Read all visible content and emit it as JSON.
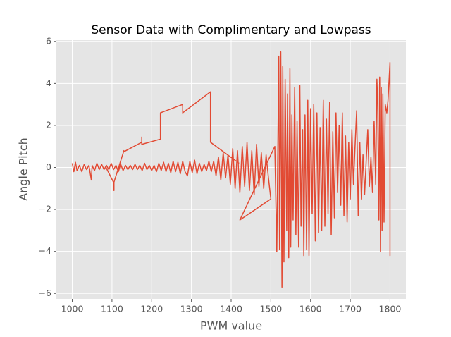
{
  "chart_data": {
    "type": "line",
    "title": "Sensor Data with Complimentary and Lowpass",
    "xlabel": "PWM value",
    "ylabel": "Angle Pitch",
    "color": "#E24A33",
    "grid": true,
    "xlim": [
      960,
      1840
    ],
    "ylim": [
      -6.26,
      6.06
    ],
    "xticks": [
      1000,
      1100,
      1200,
      1300,
      1400,
      1500,
      1600,
      1700,
      1800
    ],
    "yticks": [
      {
        "value": -6,
        "label": "−6"
      },
      {
        "value": -4,
        "label": "−4"
      },
      {
        "value": -2,
        "label": "−2"
      },
      0,
      2,
      4,
      6
    ],
    "x": [
      1000,
      1004,
      1008,
      1012,
      1018,
      1024,
      1030,
      1036,
      1042,
      1048,
      1050,
      1056,
      1062,
      1068,
      1074,
      1080,
      1086,
      1092,
      1098,
      1104,
      1110,
      1116,
      1122,
      1128,
      1134,
      1140,
      1146,
      1152,
      1158,
      1164,
      1170,
      1176,
      1182,
      1188,
      1194,
      1200,
      1206,
      1212,
      1218,
      1224,
      1230,
      1236,
      1242,
      1248,
      1254,
      1260,
      1266,
      1272,
      1278,
      1284,
      1290,
      1296,
      1302,
      1308,
      1314,
      1320,
      1326,
      1332,
      1338,
      1344,
      1350,
      1356,
      1362,
      1368,
      1374,
      1380,
      1386,
      1392,
      1398,
      1404,
      1410,
      1416,
      1422,
      1428,
      1434,
      1440,
      1446,
      1452,
      1458,
      1464,
      1470,
      1476,
      1482,
      1488,
      1494,
      1500,
      1422,
      1510,
      1515,
      1520,
      1522,
      1525,
      1528,
      1530,
      1533,
      1536,
      1540,
      1542,
      1545,
      1548,
      1550,
      1553,
      1556,
      1560,
      1563,
      1566,
      1570,
      1573,
      1576,
      1580,
      1583,
      1586,
      1590,
      1593,
      1596,
      1600,
      1604,
      1608,
      1612,
      1616,
      1620,
      1624,
      1628,
      1632,
      1636,
      1640,
      1644,
      1648,
      1652,
      1656,
      1660,
      1664,
      1668,
      1672,
      1676,
      1680,
      1684,
      1688,
      1692,
      1696,
      1700,
      1704,
      1708,
      1712,
      1716,
      1720,
      1724,
      1728,
      1732,
      1736,
      1740,
      1744,
      1748,
      1752,
      1756,
      1760,
      1764,
      1767,
      1769,
      1772,
      1774,
      1776,
      1778,
      1780,
      1782,
      1785,
      1788,
      1792,
      1795,
      1800,
      1800,
      1800,
      null,
      1085,
      1105,
      1105,
      1105,
      1130,
      1130,
      1175,
      1175,
      1175,
      1222,
      1222,
      1278,
      1278,
      1348,
      1348,
      1420
    ],
    "values": [
      0.2,
      -0.2,
      0.25,
      -0.15,
      0.1,
      -0.2,
      0.15,
      -0.1,
      0.1,
      -0.6,
      0.1,
      -0.15,
      0.2,
      -0.1,
      0.15,
      -0.1,
      0.1,
      -0.1,
      0.2,
      -0.1,
      0.1,
      -0.2,
      0.15,
      -0.15,
      0.1,
      -0.1,
      0.1,
      -0.1,
      0.15,
      -0.1,
      0.1,
      -0.15,
      0.2,
      -0.1,
      0.1,
      -0.15,
      0.1,
      -0.2,
      0.2,
      -0.15,
      0.25,
      -0.2,
      0.2,
      -0.25,
      0.3,
      -0.2,
      0.25,
      -0.3,
      0.3,
      -0.2,
      -0.4,
      0.3,
      -0.25,
      0.35,
      -0.3,
      0.2,
      -0.2,
      0.15,
      -0.15,
      0.3,
      -0.2,
      0.3,
      -0.4,
      0.5,
      -0.6,
      0.7,
      -0.5,
      0.6,
      -0.8,
      0.9,
      -1.0,
      0.8,
      -1.2,
      1.0,
      -0.9,
      1.2,
      -1.1,
      0.8,
      -1.3,
      1.1,
      -0.9,
      0.7,
      -1.0,
      0.6,
      -0.5,
      -1.5,
      -2.5,
      1.0,
      -4.0,
      5.3,
      -3.9,
      5.5,
      -5.7,
      4.8,
      -4.5,
      4.2,
      -3.0,
      3.5,
      -4.3,
      4.7,
      -3.8,
      2.5,
      -2.5,
      3.8,
      -3.2,
      2.2,
      -3.8,
      3.9,
      -2.8,
      1.8,
      -4.2,
      2.5,
      -3.9,
      3.2,
      -4.2,
      2.8,
      -2.2,
      3.0,
      -3.5,
      2.6,
      -3.1,
      1.9,
      -3.0,
      3.2,
      -2.8,
      2.3,
      -2.2,
      3.1,
      -3.2,
      1.7,
      -2.4,
      2.6,
      -1.2,
      2.0,
      -1.8,
      2.6,
      -2.3,
      1.5,
      -2.6,
      1.2,
      -1.5,
      1.8,
      -0.8,
      1.0,
      2.7,
      -2.3,
      1.2,
      -1.5,
      0.6,
      -1.3,
      0.3,
      1.8,
      -0.9,
      0.5,
      -1.2,
      2.2,
      -0.8,
      4.2,
      3.0,
      -2.5,
      4.3,
      -4.0,
      3.8,
      -3.0,
      3.5,
      -2.6,
      3.0,
      2.6,
      3.2,
      5.0,
      -4.2,
      -2.8,
      null,
      0,
      -0.75,
      -1.1,
      -0.7,
      0.8,
      0.75,
      1.2,
      1.45,
      1.1,
      1.35,
      2.6,
      3.0,
      2.6,
      3.6,
      1.2,
      0.2
    ]
  }
}
